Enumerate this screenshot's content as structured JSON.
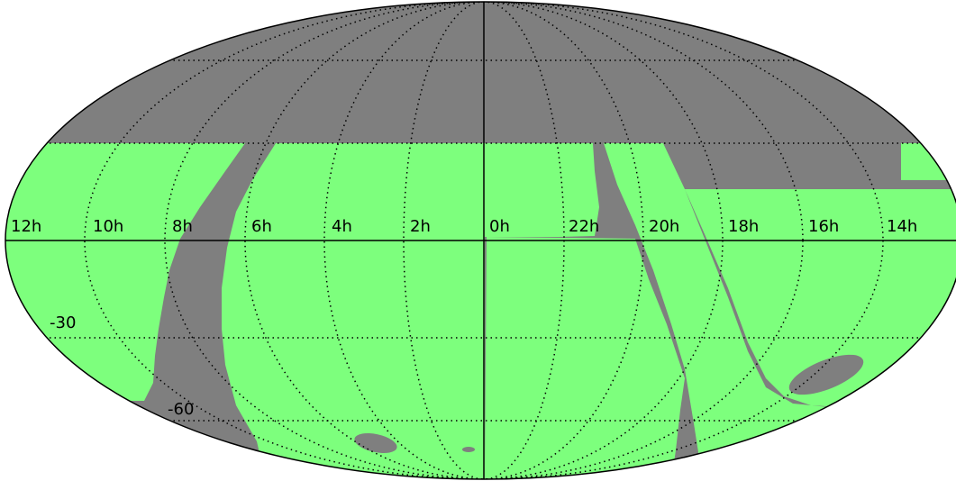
{
  "colors": {
    "footprint": "#7dff7d",
    "excluded": "#7f7f7f",
    "graticule": "#000000",
    "background": "#ffffff"
  },
  "projection": "mollweide",
  "ra_labels": [
    "12h",
    "10h",
    "8h",
    "6h",
    "4h",
    "2h",
    "0h",
    "22h",
    "20h",
    "18h",
    "16h",
    "14h"
  ],
  "dec_labels": [
    "-30",
    "-60"
  ]
}
